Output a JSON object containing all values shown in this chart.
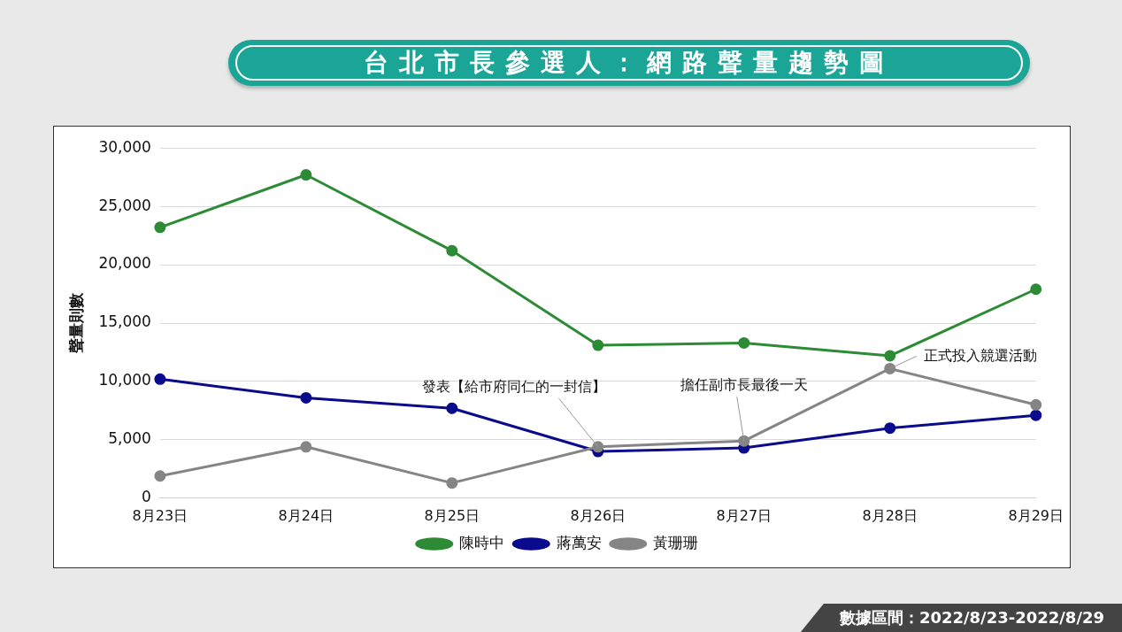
{
  "chart_data": {
    "type": "line",
    "title": "台北市長參選人：網路聲量趨勢圖",
    "ylabel": "聲量則數",
    "categories": [
      "8月23日",
      "8月24日",
      "8月25日",
      "8月26日",
      "8月27日",
      "8月28日",
      "8月29日"
    ],
    "series": [
      {
        "name": "陳時中",
        "color": "#2e8b35",
        "values": [
          23200,
          27700,
          21200,
          13100,
          13300,
          12200,
          17900
        ]
      },
      {
        "name": "蔣萬安",
        "color": "#0a0a8c",
        "values": [
          10200,
          8600,
          7700,
          4000,
          4300,
          6000,
          7100
        ]
      },
      {
        "name": "黃珊珊",
        "color": "#858585",
        "values": [
          1900,
          4400,
          1300,
          4400,
          4900,
          11100,
          8000
        ]
      }
    ],
    "ylim": [
      0,
      30000
    ],
    "yticks": [
      {
        "value": 0,
        "label": "0"
      },
      {
        "value": 5000,
        "label": "5,000"
      },
      {
        "value": 10000,
        "label": "10,000"
      },
      {
        "value": 15000,
        "label": "15,000"
      },
      {
        "value": 20000,
        "label": "20,000"
      },
      {
        "value": 25000,
        "label": "25,000"
      },
      {
        "value": 30000,
        "label": "30,000"
      }
    ],
    "grid": "y",
    "legend": "bottom",
    "marker": "circle",
    "line_style": "solid",
    "annotations": [
      {
        "text": "發表【給市府同仁的一封信】",
        "x": "8月26日",
        "y": 4400
      },
      {
        "text": "擔任副市長最後一天",
        "x": "8月27日",
        "y": 4900
      },
      {
        "text": "正式投入競選活動",
        "x": "8月28日",
        "y": 11100
      },
      "數據區間：2022/8/23-2022/8/29"
    ]
  }
}
